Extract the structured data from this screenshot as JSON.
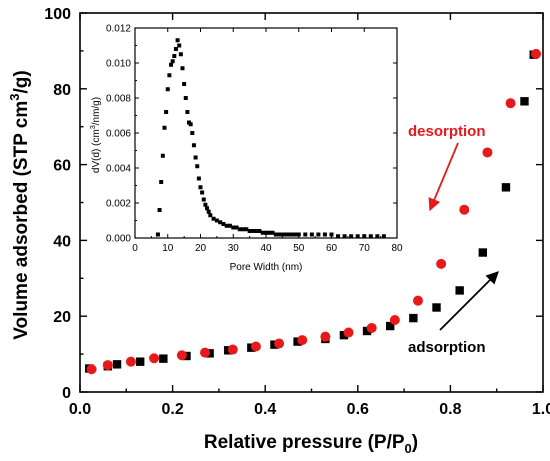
{
  "chart_data": [
    {
      "type": "scatter",
      "xlabel_main": "Relative pressure (P/P",
      "xlabel_sub": "0",
      "xlabel_close": ")",
      "ylabel_main": "Volume adsorbed (STP cm",
      "ylabel_sup": "3",
      "ylabel_close": "/g)",
      "xlim": [
        0.0,
        1.0
      ],
      "ylim": [
        0,
        100
      ],
      "xticks": [
        "0.0",
        "0.2",
        "0.4",
        "0.6",
        "0.8",
        "1.0"
      ],
      "yticks": [
        "0",
        "20",
        "40",
        "60",
        "80",
        "100"
      ],
      "annotations": {
        "desorption": "desorption",
        "adsorption": "adsorption"
      },
      "series": [
        {
          "name": "adsorption",
          "color": "#000000",
          "marker": "square",
          "x": [
            0.02,
            0.06,
            0.08,
            0.13,
            0.18,
            0.23,
            0.28,
            0.32,
            0.37,
            0.42,
            0.47,
            0.53,
            0.57,
            0.62,
            0.67,
            0.72,
            0.77,
            0.82,
            0.87,
            0.92,
            0.96,
            0.98
          ],
          "y": [
            6.2,
            6.8,
            7.3,
            8.0,
            8.8,
            9.5,
            10.2,
            11.0,
            11.7,
            12.5,
            13.3,
            14.0,
            15.0,
            16.1,
            17.4,
            19.5,
            22.3,
            26.8,
            36.8,
            54.0,
            76.7,
            89.0
          ]
        },
        {
          "name": "desorption",
          "color": "#e8191b",
          "marker": "circle",
          "x": [
            0.025,
            0.06,
            0.11,
            0.16,
            0.22,
            0.27,
            0.33,
            0.38,
            0.43,
            0.48,
            0.53,
            0.58,
            0.63,
            0.68,
            0.73,
            0.78,
            0.83,
            0.88,
            0.93,
            0.985
          ],
          "y": [
            6.0,
            7.1,
            8.0,
            8.9,
            9.7,
            10.4,
            11.2,
            12.0,
            12.8,
            13.7,
            14.6,
            15.7,
            16.9,
            19.0,
            24.1,
            33.8,
            48.1,
            63.2,
            76.2,
            89.2
          ]
        }
      ]
    },
    {
      "type": "scatter",
      "xlabel": "Pore Width (nm)",
      "ylabel_main": "dV(d) (cm",
      "ylabel_sup": "3",
      "ylabel_close": "/nm/g)",
      "xlim": [
        0,
        80
      ],
      "ylim": [
        0,
        0.012
      ],
      "xticks": [
        "0",
        "10",
        "20",
        "30",
        "40",
        "50",
        "60",
        "70",
        "80"
      ],
      "yticks": [
        "0.000",
        "0.002",
        "0.004",
        "0.006",
        "0.008",
        "0.010",
        "0.012"
      ],
      "series": [
        {
          "color": "#000000",
          "marker": "square",
          "x": [
            7.0,
            7.5,
            8.0,
            8.5,
            9.0,
            9.5,
            10.0,
            10.5,
            11.0,
            11.5,
            12.0,
            12.5,
            13.0,
            13.5,
            14.0,
            14.5,
            15.0,
            15.5,
            16.0,
            16.5,
            17.0,
            17.5,
            18.0,
            18.5,
            19.0,
            19.5,
            20.0,
            20.5,
            21.0,
            21.5,
            22.0,
            22.5,
            23.0,
            24.0,
            25.0,
            26.0,
            27.0,
            28.0,
            29.0,
            30.0,
            31.0,
            32.0,
            33.0,
            34.0,
            35.0,
            36.0,
            37.0,
            38.0,
            39.0,
            40.0,
            41.0,
            42.0,
            43.0,
            44.0,
            45.0,
            46.0,
            47.0,
            48.0,
            49.0,
            50.0,
            52.0,
            54.0,
            56.0,
            58.0,
            60.0,
            62.0,
            64.0,
            66.0,
            68.0,
            70.0,
            72.0,
            74.0,
            76.0
          ],
          "y": [
            0.0002,
            0.0016,
            0.0032,
            0.0047,
            0.0063,
            0.0072,
            0.0085,
            0.0093,
            0.0099,
            0.0101,
            0.0104,
            0.0108,
            0.0113,
            0.011,
            0.0105,
            0.0097,
            0.0088,
            0.008,
            0.0072,
            0.0066,
            0.0065,
            0.006,
            0.0053,
            0.0046,
            0.0041,
            0.0034,
            0.0029,
            0.0026,
            0.0022,
            0.0019,
            0.0017,
            0.0015,
            0.0013,
            0.0011,
            0.001,
            0.0009,
            0.0008,
            0.0007,
            0.0007,
            0.0006,
            0.0006,
            0.0005,
            0.0005,
            0.0005,
            0.0004,
            0.0004,
            0.0004,
            0.0004,
            0.0003,
            0.0003,
            0.0003,
            0.0003,
            0.0002,
            0.0002,
            0.0002,
            0.0002,
            0.0002,
            0.0002,
            0.0002,
            0.0002,
            0.0002,
            0.0002,
            0.0002,
            0.0002,
            0.0002,
            0.0001,
            0.0001,
            0.0001,
            0.0001,
            0.0001,
            0.0001,
            0.0001,
            0.0001
          ]
        }
      ]
    }
  ]
}
